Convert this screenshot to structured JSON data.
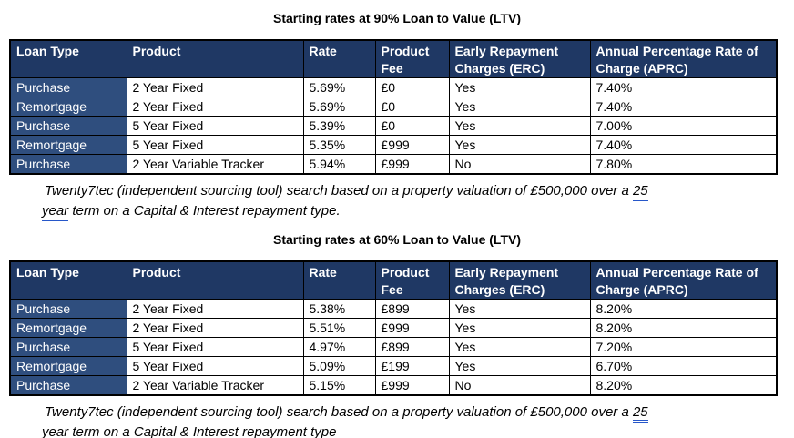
{
  "colors": {
    "header_bg": "#1F3864",
    "row_label_bg": "#2F4E7E",
    "header_text": "#FFFFFF",
    "cell_text": "#000000",
    "border": "#000000",
    "grammar_underline": "#2757C9"
  },
  "tables": [
    {
      "title": "Starting rates at 90% Loan to Value (LTV)",
      "columns": [
        "Loan Type",
        "Product",
        "Rate",
        "Product Fee",
        "Early Repayment Charges (ERC)",
        "Annual Percentage Rate of Charge (APRC)"
      ],
      "rows": [
        [
          "Purchase",
          "2 Year Fixed",
          "5.69%",
          "£0",
          "Yes",
          "7.40%"
        ],
        [
          "Remortgage",
          "2 Year Fixed",
          "5.69%",
          "£0",
          "Yes",
          "7.40%"
        ],
        [
          "Purchase",
          "5 Year Fixed",
          "5.39%",
          "£0",
          "Yes",
          "7.00%"
        ],
        [
          "Remortgage",
          "5 Year Fixed",
          "5.35%",
          "£999",
          "Yes",
          "7.40%"
        ],
        [
          "Purchase",
          "2 Year Variable Tracker",
          "5.94%",
          "£999",
          "No",
          "7.80%"
        ]
      ],
      "caption": {
        "line1_prefix": "Twenty7tec (independent sourcing tool) search based on a property valuation of £500,000 over a ",
        "underline_word_1": "25",
        "underline_word_2": "year",
        "line2_suffix": " term on a Capital & Interest repayment type."
      }
    },
    {
      "title": "Starting rates at 60% Loan to Value (LTV)",
      "columns": [
        "Loan Type",
        "Product",
        "Rate",
        "Product Fee",
        "Early Repayment Charges (ERC)",
        "Annual Percentage Rate of Charge (APRC)"
      ],
      "rows": [
        [
          "Purchase",
          "2 Year Fixed",
          "5.38%",
          "£899",
          "Yes",
          "8.20%"
        ],
        [
          "Remortgage",
          "2 Year Fixed",
          "5.51%",
          "£999",
          "Yes",
          "8.20%"
        ],
        [
          "Purchase",
          "5 Year Fixed",
          "4.97%",
          "£899",
          "Yes",
          "7.20%"
        ],
        [
          "Remortgage",
          "5 Year Fixed",
          "5.09%",
          "£199",
          "Yes",
          "6.70%"
        ],
        [
          "Purchase",
          "2 Year Variable Tracker",
          "5.15%",
          "£999",
          "No",
          "8.20%"
        ]
      ],
      "caption": {
        "line1_prefix": "Twenty7tec (independent sourcing tool) search based on a property valuation of £500,000 over a ",
        "underline_word_1": "25",
        "underline_word_2": "year",
        "line2_suffix": " term on a Capital & Interest repayment type"
      }
    }
  ]
}
